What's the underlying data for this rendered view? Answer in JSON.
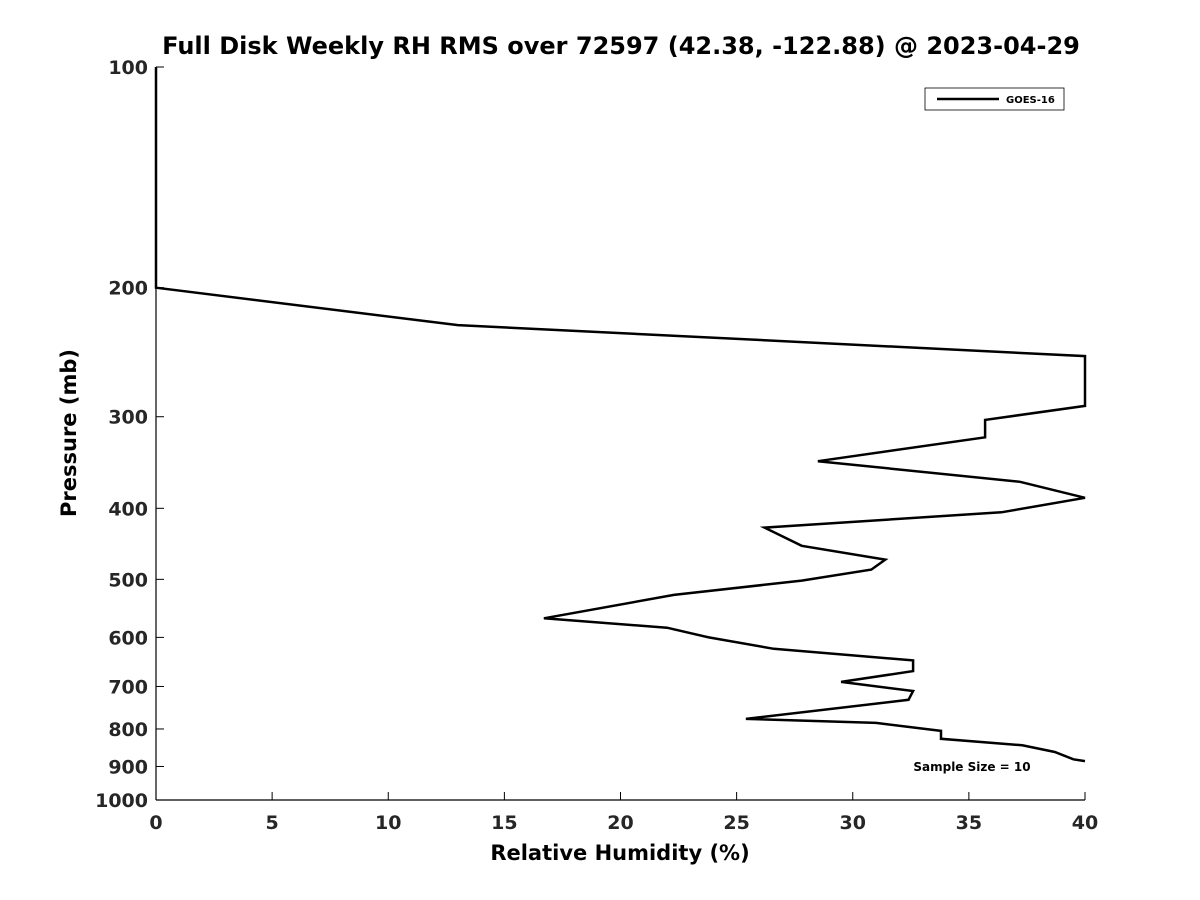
{
  "chart_data": {
    "type": "line",
    "title": "Full Disk Weekly RH RMS over 72597 (42.38, -122.88) @ 2023-04-29",
    "xlabel": "Relative Humidity (%)",
    "ylabel": "Pressure (mb)",
    "xlim": [
      0,
      40
    ],
    "ylim": [
      100,
      1000
    ],
    "y_scale": "log",
    "y_reversed": true,
    "grid": false,
    "legend_position": "top-right",
    "x_ticks": [
      "0",
      "5",
      "10",
      "15",
      "20",
      "25",
      "30",
      "35",
      "40"
    ],
    "y_ticks": [
      "100",
      "200",
      "300",
      "400",
      "500",
      "600",
      "700",
      "800",
      "900",
      "1000"
    ],
    "annotation": "Sample Size = 10",
    "series": [
      {
        "name": "GOES-16",
        "color": "#000000",
        "points": [
          [
            0,
            100
          ],
          [
            0,
            150
          ],
          [
            0,
            200
          ],
          [
            13,
            225
          ],
          [
            40,
            248
          ],
          [
            40,
            290
          ],
          [
            35.7,
            303
          ],
          [
            35.7,
            320
          ],
          [
            28.5,
            345
          ],
          [
            37.2,
            368
          ],
          [
            40,
            387
          ],
          [
            36.4,
            405
          ],
          [
            26.2,
            425
          ],
          [
            27.8,
            450
          ],
          [
            31.4,
            470
          ],
          [
            30.8,
            485
          ],
          [
            27.8,
            502
          ],
          [
            22.3,
            525
          ],
          [
            16.7,
            565
          ],
          [
            22.0,
            582
          ],
          [
            23.8,
            600
          ],
          [
            26.6,
            622
          ],
          [
            32.6,
            645
          ],
          [
            32.6,
            667
          ],
          [
            29.5,
            690
          ],
          [
            32.6,
            710
          ],
          [
            32.4,
            730
          ],
          [
            25.4,
            775
          ],
          [
            31.0,
            785
          ],
          [
            33.8,
            805
          ],
          [
            33.8,
            825
          ],
          [
            37.3,
            842
          ],
          [
            38.7,
            860
          ],
          [
            39.5,
            880
          ],
          [
            40,
            885
          ]
        ]
      }
    ]
  }
}
